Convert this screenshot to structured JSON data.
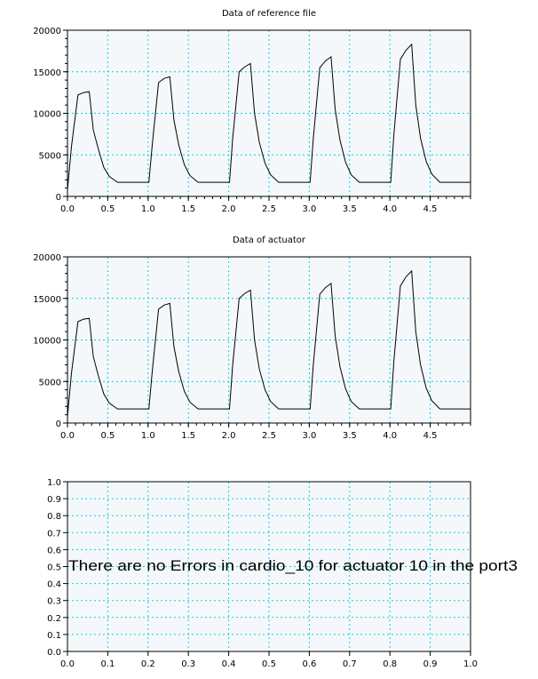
{
  "chart_data": [
    {
      "type": "line",
      "title": "Data of reference file",
      "xlabel": "",
      "ylabel": "",
      "xlim": [
        0,
        5
      ],
      "ylim": [
        0,
        20000
      ],
      "grid": true,
      "x_ticks": [
        "0.0",
        "0.5",
        "1.0",
        "1.5",
        "2.0",
        "2.5",
        "3.0",
        "3.5",
        "4.0",
        "4.5"
      ],
      "y_ticks": [
        "0",
        "5000",
        "10000",
        "15000",
        "20000"
      ],
      "series": [
        {
          "x": [
            0,
            0.05,
            0.13,
            0.2,
            0.27,
            0.32,
            0.38,
            0.45,
            0.52,
            0.62,
            0.8,
            1.0,
            1.01,
            1.05,
            1.13,
            1.2,
            1.27,
            1.32,
            1.38,
            1.45,
            1.52,
            1.62,
            1.8,
            2.0,
            2.01,
            2.05,
            2.13,
            2.2,
            2.27,
            2.32,
            2.38,
            2.45,
            2.52,
            2.62,
            2.8,
            3.0,
            3.01,
            3.05,
            3.13,
            3.2,
            3.27,
            3.32,
            3.38,
            3.45,
            3.52,
            3.62,
            3.8,
            4.0,
            4.01,
            4.05,
            4.13,
            4.2,
            4.27,
            4.32,
            4.38,
            4.45,
            4.52,
            4.62,
            4.8,
            5.0
          ],
          "y": [
            800,
            6000,
            12200,
            12500,
            12600,
            8000,
            5800,
            3500,
            2400,
            1700,
            1700,
            1700,
            1700,
            6000,
            13700,
            14200,
            14400,
            9200,
            6200,
            3800,
            2500,
            1700,
            1700,
            1700,
            1700,
            7000,
            15000,
            15600,
            16000,
            10000,
            6500,
            4000,
            2600,
            1700,
            1700,
            1700,
            1700,
            7000,
            15500,
            16300,
            16800,
            10500,
            6800,
            4100,
            2600,
            1700,
            1700,
            1700,
            1700,
            7500,
            16500,
            17600,
            18300,
            11000,
            7000,
            4200,
            2700,
            1700,
            1700,
            1700
          ]
        }
      ]
    },
    {
      "type": "line",
      "title": "Data of actuator",
      "xlabel": "",
      "ylabel": "",
      "xlim": [
        0,
        5
      ],
      "ylim": [
        0,
        20000
      ],
      "grid": true,
      "x_ticks": [
        "0.0",
        "0.5",
        "1.0",
        "1.5",
        "2.0",
        "2.5",
        "3.0",
        "3.5",
        "4.0",
        "4.5"
      ],
      "y_ticks": [
        "0",
        "5000",
        "10000",
        "15000",
        "20000"
      ],
      "series": [
        {
          "x": [
            0,
            0.05,
            0.13,
            0.2,
            0.27,
            0.32,
            0.38,
            0.45,
            0.52,
            0.62,
            0.8,
            1.0,
            1.01,
            1.05,
            1.13,
            1.2,
            1.27,
            1.32,
            1.38,
            1.45,
            1.52,
            1.62,
            1.8,
            2.0,
            2.01,
            2.05,
            2.13,
            2.2,
            2.27,
            2.32,
            2.38,
            2.45,
            2.52,
            2.62,
            2.8,
            3.0,
            3.01,
            3.05,
            3.13,
            3.2,
            3.27,
            3.32,
            3.38,
            3.45,
            3.52,
            3.62,
            3.8,
            4.0,
            4.01,
            4.05,
            4.13,
            4.2,
            4.27,
            4.32,
            4.38,
            4.45,
            4.52,
            4.62,
            4.8,
            5.0
          ],
          "y": [
            800,
            6000,
            12200,
            12500,
            12600,
            8000,
            5800,
            3500,
            2400,
            1700,
            1700,
            1700,
            1700,
            6000,
            13700,
            14200,
            14400,
            9200,
            6200,
            3800,
            2500,
            1700,
            1700,
            1700,
            1700,
            7000,
            15000,
            15600,
            16000,
            10000,
            6500,
            4000,
            2600,
            1700,
            1700,
            1700,
            1700,
            7000,
            15500,
            16300,
            16800,
            10500,
            6800,
            4100,
            2600,
            1700,
            1700,
            1700,
            1700,
            7500,
            16500,
            17600,
            18300,
            11000,
            7000,
            4200,
            2700,
            1700,
            1700,
            1700
          ]
        }
      ]
    },
    {
      "type": "line",
      "title": "",
      "xlabel": "",
      "ylabel": "",
      "xlim": [
        0,
        1
      ],
      "ylim": [
        0,
        1
      ],
      "grid": true,
      "x_ticks": [
        "0.0",
        "0.1",
        "0.2",
        "0.3",
        "0.4",
        "0.5",
        "0.6",
        "0.7",
        "0.8",
        "0.9",
        "1.0"
      ],
      "y_ticks": [
        "0.0",
        "0.1",
        "0.2",
        "0.3",
        "0.4",
        "0.5",
        "0.6",
        "0.7",
        "0.8",
        "0.9",
        "1.0"
      ],
      "series": [],
      "annotation": "There are no Errors in cardio_10 for actuator 10 in the port3"
    }
  ]
}
